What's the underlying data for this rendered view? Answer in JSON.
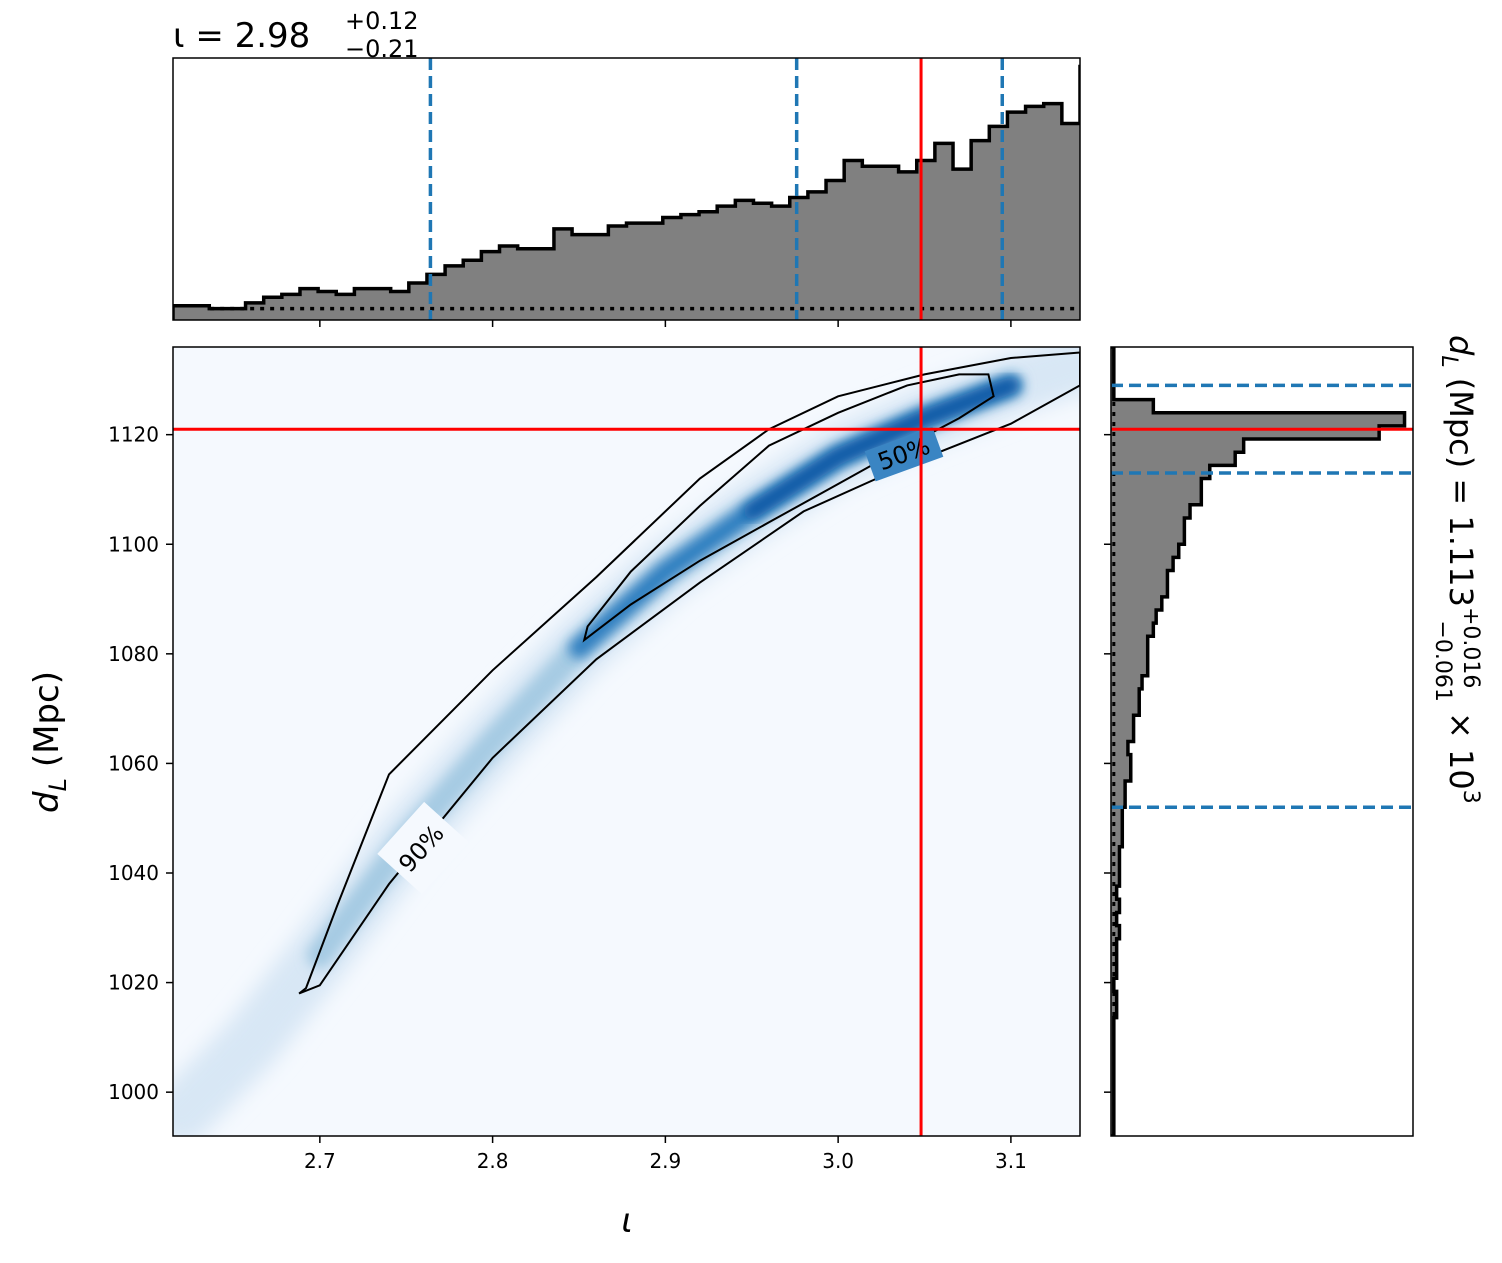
{
  "chart_data": {
    "type": "corner-plot",
    "top_histogram": {
      "title": "ι = 2.98",
      "title_sup": "+0.12",
      "title_sub": "−0.21",
      "x_range": [
        2.615,
        3.14
      ],
      "quantile_lines": [
        2.764,
        2.976,
        3.095
      ],
      "truth": 3.048,
      "edges_start": 2.615,
      "bin_width": 0.0105,
      "counts": [
        5,
        5,
        4,
        4,
        6,
        8,
        9,
        11,
        10,
        9,
        11,
        11,
        10,
        13,
        16,
        19,
        21,
        24,
        26,
        25,
        25,
        32,
        30,
        30,
        33,
        34,
        34,
        36,
        37,
        38,
        40,
        42,
        41,
        40,
        43,
        45,
        49,
        56,
        54,
        54,
        52,
        56,
        62,
        53,
        63,
        68,
        73,
        75,
        76,
        69,
        89,
        82,
        77,
        73,
        68,
        62,
        45,
        40,
        22,
        13
      ],
      "prior_counts": [
        5,
        5,
        4,
        4,
        4,
        4,
        4,
        4,
        4,
        4,
        4,
        4,
        4,
        4,
        4,
        4,
        4,
        4,
        4,
        4,
        4,
        4,
        4,
        4,
        4,
        4,
        4,
        4,
        4,
        4,
        4,
        4,
        4,
        4,
        4,
        4,
        4,
        4,
        4,
        4,
        4,
        4,
        4,
        4,
        4,
        4,
        4,
        4,
        4,
        4,
        4,
        4,
        4,
        4,
        4,
        4,
        4,
        4,
        4,
        4
      ]
    },
    "joint": {
      "xlabel": "ι",
      "ylabel": "d",
      "ylabel_sub": "L",
      "ylabel_unit": " (Mpc)",
      "x_range": [
        2.615,
        3.14
      ],
      "y_range": [
        992,
        1136
      ],
      "x_ticks": [
        2.7,
        2.8,
        2.9,
        3.0,
        3.1
      ],
      "x_tick_labels": [
        "2.7",
        "2.8",
        "2.9",
        "3.0",
        "3.1"
      ],
      "y_ticks": [
        1000,
        1020,
        1040,
        1060,
        1080,
        1100,
        1120
      ],
      "y_tick_labels": [
        "1000",
        "1020",
        "1040",
        "1060",
        "1080",
        "1100",
        "1120"
      ],
      "truth": {
        "x": 3.048,
        "y": 1121
      },
      "contour_labels": [
        "90%",
        "50%"
      ],
      "contour_50": [
        [
          2.853,
          1082.5
        ],
        [
          2.88,
          1089
        ],
        [
          2.92,
          1097
        ],
        [
          2.96,
          1104
        ],
        [
          3.0,
          1111
        ],
        [
          3.04,
          1118
        ],
        [
          3.07,
          1123
        ],
        [
          3.09,
          1127
        ],
        [
          3.087,
          1131
        ],
        [
          3.07,
          1131
        ],
        [
          3.04,
          1129
        ],
        [
          3.0,
          1124
        ],
        [
          2.96,
          1118
        ],
        [
          2.92,
          1107
        ],
        [
          2.88,
          1095
        ],
        [
          2.855,
          1085
        ],
        [
          2.853,
          1082.5
        ]
      ],
      "contour_90": [
        [
          2.688,
          1018
        ],
        [
          2.7,
          1019.5
        ],
        [
          2.74,
          1038
        ],
        [
          2.8,
          1061
        ],
        [
          2.86,
          1079
        ],
        [
          2.92,
          1093
        ],
        [
          2.98,
          1106
        ],
        [
          3.04,
          1114.5
        ],
        [
          3.1,
          1122
        ],
        [
          3.14,
          1129
        ],
        [
          3.14,
          1135
        ],
        [
          3.1,
          1134
        ],
        [
          3.05,
          1131
        ],
        [
          3.0,
          1127
        ],
        [
          2.96,
          1121
        ],
        [
          2.92,
          1112
        ],
        [
          2.86,
          1094
        ],
        [
          2.8,
          1077
        ],
        [
          2.74,
          1058
        ],
        [
          2.71,
          1034
        ],
        [
          2.692,
          1019
        ],
        [
          2.688,
          1018
        ]
      ],
      "density_ridge": [
        [
          2.62,
          996
        ],
        [
          2.66,
          1009
        ],
        [
          2.7,
          1025
        ],
        [
          2.75,
          1046
        ],
        [
          2.8,
          1064
        ],
        [
          2.85,
          1081
        ],
        [
          2.9,
          1095
        ],
        [
          2.95,
          1106
        ],
        [
          3.0,
          1116
        ],
        [
          3.05,
          1123
        ],
        [
          3.1,
          1129
        ],
        [
          3.14,
          1133
        ]
      ]
    },
    "right_histogram": {
      "ylabel": "d",
      "ylabel_sub": "L",
      "ylabel_unit": " (Mpc) = 1.113",
      "ylabel_sup": "+0.016",
      "ylabel_sub2": "−0.061",
      "ylabel_tail": " × 10",
      "ylabel_exp": "3",
      "y_range": [
        992,
        1136
      ],
      "quantile_lines": [
        1129,
        1113,
        1052
      ],
      "truth": 1121,
      "edges_start": 992,
      "bin_width": 2.4,
      "counts": [
        1,
        1,
        1,
        1,
        1,
        1,
        1,
        1,
        1,
        2,
        2,
        1,
        2,
        2,
        2,
        3,
        2,
        3,
        2,
        3,
        3,
        3,
        4,
        4,
        4,
        5,
        5,
        7,
        7,
        6,
        8,
        8,
        10,
        10,
        11,
        13,
        13,
        13,
        15,
        16,
        18,
        20,
        20,
        22,
        24,
        26,
        26,
        28,
        32,
        32,
        35,
        44,
        47,
        95,
        104,
        15,
        1,
        1,
        1,
        1
      ],
      "prior_counts": [
        1,
        1,
        1,
        1,
        1,
        1,
        1,
        1,
        1,
        1,
        1,
        1,
        1,
        1,
        1,
        1,
        1,
        1,
        1,
        1,
        1,
        1,
        1,
        1,
        1,
        1,
        1,
        1,
        1,
        1,
        1,
        1,
        1,
        1,
        1,
        1,
        1,
        1,
        1,
        1,
        1,
        1,
        1,
        1,
        1,
        1,
        1,
        1,
        1,
        1,
        1,
        1,
        1,
        1,
        1,
        1,
        1,
        1,
        1,
        1
      ]
    }
  }
}
